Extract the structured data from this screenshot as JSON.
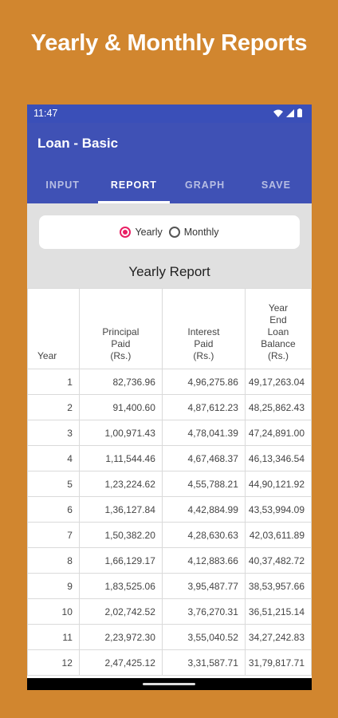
{
  "promo": {
    "title": "Yearly & Monthly Reports"
  },
  "status_bar": {
    "time": "11:47"
  },
  "app": {
    "title": "Loan - Basic"
  },
  "tabs": [
    {
      "label": "INPUT",
      "active": false
    },
    {
      "label": "REPORT",
      "active": true
    },
    {
      "label": "GRAPH",
      "active": false
    },
    {
      "label": "SAVE",
      "active": false
    }
  ],
  "report_toggle": {
    "yearly_label": "Yearly",
    "monthly_label": "Monthly",
    "selected": "Yearly"
  },
  "report": {
    "title": "Yearly Report",
    "headers": {
      "year": "Year",
      "principal_lines": [
        "Principal",
        "Paid",
        "(Rs.)"
      ],
      "interest_lines": [
        "Interest",
        "Paid",
        "(Rs.)"
      ],
      "balance_lines": [
        "Year",
        "End",
        "Loan",
        "Balance",
        "(Rs.)"
      ]
    },
    "rows": [
      [
        "1",
        "82,736.96",
        "4,96,275.86",
        "49,17,263.04"
      ],
      [
        "2",
        "91,400.60",
        "4,87,612.23",
        "48,25,862.43"
      ],
      [
        "3",
        "1,00,971.43",
        "4,78,041.39",
        "47,24,891.00"
      ],
      [
        "4",
        "1,11,544.46",
        "4,67,468.37",
        "46,13,346.54"
      ],
      [
        "5",
        "1,23,224.62",
        "4,55,788.21",
        "44,90,121.92"
      ],
      [
        "6",
        "1,36,127.84",
        "4,42,884.99",
        "43,53,994.09"
      ],
      [
        "7",
        "1,50,382.20",
        "4,28,630.63",
        "42,03,611.89"
      ],
      [
        "8",
        "1,66,129.17",
        "4,12,883.66",
        "40,37,482.72"
      ],
      [
        "9",
        "1,83,525.06",
        "3,95,487.77",
        "38,53,957.66"
      ],
      [
        "10",
        "2,02,742.52",
        "3,76,270.31",
        "36,51,215.14"
      ],
      [
        "11",
        "2,23,972.30",
        "3,55,040.52",
        "34,27,242.83"
      ],
      [
        "12",
        "2,47,425.12",
        "3,31,587.71",
        "31,79,817.71"
      ]
    ]
  },
  "colors": {
    "background": "#D1862F",
    "app_bar": "#3F51B5",
    "status_bar": "#3A4FB8",
    "radio_accent": "#E91E63"
  }
}
